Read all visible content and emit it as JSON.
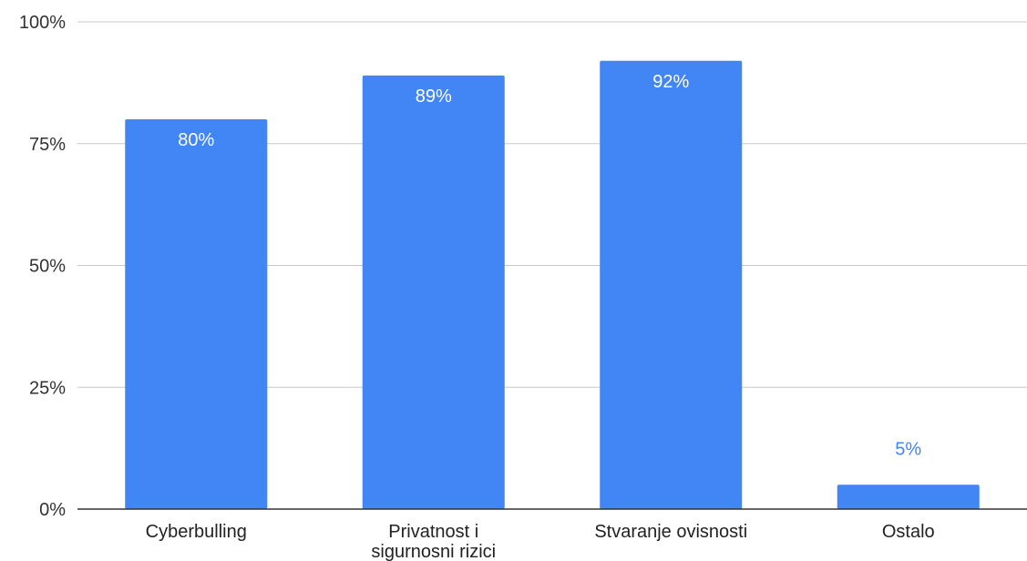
{
  "chart_data": {
    "type": "bar",
    "categories": [
      "Cyberbulling",
      "Privatnost i sigurnosni rizici",
      "Stvaranje ovisnosti",
      "Ostalo"
    ],
    "category_lines": [
      [
        "Cyberbulling"
      ],
      [
        "Privatnost i",
        "sigurnosni rizici"
      ],
      [
        "Stvaranje ovisnosti"
      ],
      [
        "Ostalo"
      ]
    ],
    "values": [
      80,
      89,
      92,
      5
    ],
    "data_labels": [
      "80%",
      "89%",
      "92%",
      "5%"
    ],
    "ylim": [
      0,
      100
    ],
    "yticks": [
      0,
      25,
      50,
      75,
      100
    ],
    "ytick_labels": [
      "0%",
      "25%",
      "50%",
      "75%",
      "100%"
    ],
    "grid": true,
    "legend": "none",
    "title": "",
    "xlabel": "",
    "ylabel": "",
    "colors": {
      "bar": "#4285F4",
      "label_inside": "#ffffff",
      "label_outside": "#4285F4",
      "grid": "#c8c8c8",
      "axis": "#333333"
    }
  }
}
